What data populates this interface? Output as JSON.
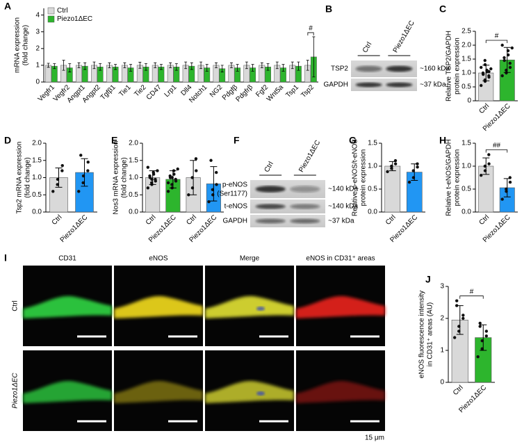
{
  "chart_data": [
    {
      "type": "bar",
      "panel": "A",
      "ylabel": [
        "mRNA expression",
        "(fold change)"
      ],
      "categories": [
        "Vegfr1",
        "Vegfr2",
        "Angpt1",
        "Angpt2",
        "Tgfβ1",
        "Tie1",
        "Tie2",
        "CD47",
        "Lrp1",
        "Dll4",
        "Notch1",
        "NG2",
        "Pdgfβ",
        "Pdgfrβ",
        "Fgf2",
        "Wnt5a",
        "Tsp1",
        "Tsp2"
      ],
      "category_label_colors": [
        "#000",
        "#000",
        "#000",
        "#000",
        "#000",
        "#000",
        "#000",
        "#000",
        "#000",
        "#000",
        "#000",
        "#000",
        "#000",
        "#000",
        "#000",
        "#000",
        "#000",
        "#e8402a"
      ],
      "series": [
        {
          "name": "Ctrl",
          "color": "#d9d9d9",
          "values": [
            1,
            1,
            1,
            1,
            1,
            1,
            1,
            1,
            1,
            1,
            1,
            1,
            1,
            1,
            1,
            1,
            1,
            1
          ],
          "errors": [
            0.12,
            0.3,
            0.15,
            0.2,
            0.15,
            0.15,
            0.18,
            0.15,
            0.15,
            0.2,
            0.2,
            0.15,
            0.15,
            0.2,
            0.15,
            0.2,
            0.2,
            0.3
          ]
        },
        {
          "name": "Piezo1ΔEC",
          "color": "#2db52d",
          "values": [
            0.95,
            0.85,
            0.95,
            0.9,
            0.9,
            0.85,
            0.9,
            0.9,
            0.9,
            0.95,
            0.85,
            0.8,
            0.85,
            0.85,
            0.9,
            0.85,
            0.95,
            1.5
          ],
          "errors": [
            0.15,
            0.25,
            0.2,
            0.2,
            0.15,
            0.2,
            0.2,
            0.15,
            0.2,
            0.2,
            0.2,
            0.2,
            0.2,
            0.2,
            0.2,
            0.2,
            0.25,
            1.2
          ]
        }
      ],
      "ylim": [
        0,
        4.4
      ],
      "yticks": [
        0,
        1,
        2,
        3,
        4
      ],
      "annotation": "#",
      "legend": "upper left"
    },
    {
      "type": "bar",
      "panel": "C",
      "ylabel": [
        "Relative TSP2/GAPDH",
        "protein expression"
      ],
      "categories": [
        "Ctrl",
        "Piezo1ΔEC"
      ],
      "colors": [
        "#d9d9d9",
        "#2db52d"
      ],
      "values": [
        1.0,
        1.47
      ],
      "errors": [
        0.28,
        0.45
      ],
      "points": [
        [
          0.55,
          0.7,
          0.75,
          0.85,
          0.9,
          0.95,
          1.0,
          1.05,
          1.1,
          1.15,
          1.2,
          1.3,
          1.45,
          1.05
        ],
        [
          0.9,
          1.0,
          1.1,
          1.2,
          1.35,
          1.45,
          1.55,
          1.65,
          1.8,
          1.9,
          2.0
        ]
      ],
      "ylim": [
        0,
        2.5
      ],
      "yticks": [
        0,
        0.5,
        {
          "value": 1,
          "label": "1.0"
        },
        1.5,
        {
          "value": 2,
          "label": "2.0"
        },
        2.5
      ],
      "annotation": "#"
    },
    {
      "type": "bar",
      "panel": "D",
      "ylabel": [
        "Tsp2 mRNA expression",
        "(fold change)"
      ],
      "categories": [
        "Ctrl",
        "Piezo1ΔEC"
      ],
      "colors": [
        "#d9d9d9",
        "#2196f3"
      ],
      "values": [
        1.0,
        1.15
      ],
      "errors": [
        0.28,
        0.4
      ],
      "points": [
        [
          0.6,
          0.8,
          0.95,
          1.2,
          1.35
        ],
        [
          0.6,
          0.85,
          1.05,
          1.2,
          1.45,
          1.65
        ]
      ],
      "ylim": [
        0,
        2
      ],
      "yticks": [
        {
          "value": 0,
          "label": "0.0"
        },
        0.5,
        {
          "value": 1,
          "label": "1.0"
        },
        1.5,
        {
          "value": 2,
          "label": "2.0"
        }
      ]
    },
    {
      "type": "bar",
      "panel": "E",
      "ylabel": [
        "Nos3 mRNA expression",
        "(fold change)"
      ],
      "categories": [
        "Ctrl",
        "Piezo1ΔEC",
        "Ctrl",
        "Piezo1ΔEC"
      ],
      "colors": [
        "#d9d9d9",
        "#2db52d",
        "#d9d9d9",
        "#2196f3"
      ],
      "values": [
        1.0,
        0.95,
        1.0,
        0.82
      ],
      "errors": [
        0.2,
        0.25,
        0.5,
        0.5
      ],
      "points": [
        [
          0.7,
          0.8,
          0.85,
          0.9,
          0.95,
          1.0,
          1.05,
          1.1,
          1.15,
          1.2,
          1.3,
          0.95
        ],
        [
          0.6,
          0.7,
          0.8,
          0.9,
          0.95,
          1.0,
          1.05,
          1.1,
          1.2,
          1.25,
          0.85,
          1.0
        ],
        [
          0.5,
          0.7,
          1.0,
          1.2,
          1.55
        ],
        [
          0.3,
          0.5,
          0.65,
          0.8,
          1.15,
          1.5
        ]
      ],
      "ylim": [
        0,
        2
      ],
      "yticks": [
        {
          "value": 0,
          "label": "0.0"
        },
        0.5,
        {
          "value": 1,
          "label": "1.0"
        },
        1.5,
        {
          "value": 2,
          "label": "2.0"
        }
      ]
    },
    {
      "type": "bar",
      "panel": "G",
      "ylabel": [
        "Relative p-eNOS/t-eNOS",
        "protein expression"
      ],
      "categories": [
        "Ctrl",
        "Piezo1ΔEC"
      ],
      "colors": [
        "#d9d9d9",
        "#2196f3"
      ],
      "values": [
        1.0,
        0.87
      ],
      "errors": [
        0.1,
        0.18
      ],
      "points": [
        [
          0.88,
          0.95,
          1.0,
          1.05,
          1.12
        ],
        [
          0.65,
          0.75,
          0.9,
          0.98,
          1.05
        ]
      ],
      "ylim": [
        0,
        1.5
      ],
      "yticks": [
        {
          "value": 0,
          "label": "0.0"
        },
        0.5,
        {
          "value": 1,
          "label": "1.0"
        },
        1.5
      ]
    },
    {
      "type": "bar",
      "panel": "H",
      "ylabel": [
        "Relative t-eNOS/GAPDH",
        "protein expression"
      ],
      "categories": [
        "Ctrl",
        "Piezo1ΔEC"
      ],
      "colors": [
        "#d9d9d9",
        "#2196f3"
      ],
      "values": [
        1.0,
        0.53
      ],
      "errors": [
        0.18,
        0.2
      ],
      "points": [
        [
          0.8,
          0.9,
          1.0,
          1.05,
          1.25
        ],
        [
          0.28,
          0.45,
          0.5,
          0.65,
          0.75
        ]
      ],
      "ylim": [
        0,
        1.5
      ],
      "yticks": [
        {
          "value": 0,
          "label": "0.0"
        },
        0.5,
        {
          "value": 1,
          "label": "1.0"
        },
        1.5
      ],
      "annotation": "##"
    },
    {
      "type": "bar",
      "panel": "J",
      "ylabel": [
        "eNOS fluorescence intensity",
        "in CD31⁺ areas (AU)"
      ],
      "categories": [
        "Ctrl",
        "Piezo1ΔEC"
      ],
      "colors": [
        "#d9d9d9",
        "#2db52d"
      ],
      "values": [
        1.95,
        1.4
      ],
      "errors": [
        0.45,
        0.4
      ],
      "points": [
        [
          1.4,
          1.6,
          1.75,
          2.0,
          2.1,
          2.4,
          2.55
        ],
        [
          0.8,
          1.05,
          1.3,
          1.45,
          1.6,
          1.75,
          1.85
        ]
      ],
      "ylim": [
        0,
        3
      ],
      "yticks": [
        0,
        1,
        2,
        3
      ],
      "annotation": "#"
    }
  ],
  "blots": [
    {
      "panel": "B",
      "lanes": [
        "Ctrl",
        "Piezo1ΔEC"
      ],
      "rows": [
        {
          "label": "TSP2",
          "size": "~160 kDa"
        },
        {
          "label": "GAPDH",
          "size": "~37 kDa"
        }
      ]
    },
    {
      "panel": "F",
      "lanes": [
        "Ctrl",
        "Piezo1ΔEC"
      ],
      "rows": [
        {
          "label": "p-eNOS",
          "sublabel": "(Ser1177)",
          "size": "~140 kDa"
        },
        {
          "label": "t-eNOS",
          "size": "~140 kDa"
        },
        {
          "label": "GAPDH",
          "size": "~37 kDa"
        }
      ]
    }
  ],
  "micrograph": {
    "panel": "I",
    "columns": [
      "CD31",
      "eNOS",
      "Merge",
      "eNOS in CD31⁺ areas"
    ],
    "rows": [
      "Ctrl",
      "Piezo1ΔEC"
    ],
    "scale_bar": "15 μm"
  }
}
